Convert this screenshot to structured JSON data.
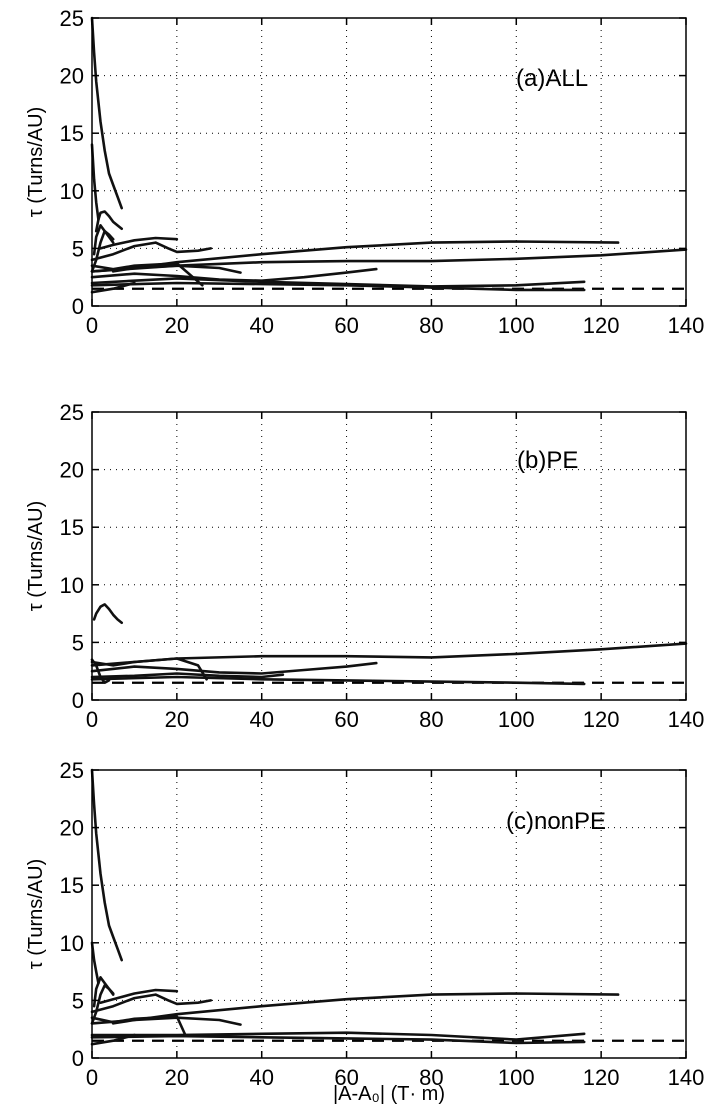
{
  "chart_data": [
    {
      "type": "line",
      "panel_label": "(a)ALL",
      "ylabel": "τ (Turns/AU)",
      "xlabel": "",
      "xlim": [
        0,
        140
      ],
      "ylim": [
        0,
        25
      ],
      "xticks": [
        0,
        20,
        40,
        60,
        80,
        100,
        120,
        140
      ],
      "yticks": [
        0,
        5,
        10,
        15,
        20,
        25
      ],
      "grid": "dotted",
      "reference_line": {
        "y": 1.5,
        "style": "dashed"
      },
      "series": [
        {
          "x": [
            0,
            0.5,
            1,
            2,
            3,
            4,
            5,
            6,
            7
          ],
          "y": [
            25,
            22,
            19.5,
            16,
            13.5,
            11.5,
            10.5,
            9.5,
            8.5
          ]
        },
        {
          "x": [
            0,
            0.5,
            1,
            1.5
          ],
          "y": [
            14,
            11,
            9,
            7.5
          ]
        },
        {
          "x": [
            1,
            1.5,
            2,
            3,
            4,
            5,
            6,
            7
          ],
          "y": [
            6.5,
            7.5,
            8.1,
            8.2,
            7.8,
            7.3,
            7.0,
            6.7
          ]
        },
        {
          "x": [
            0.5,
            1,
            2,
            3,
            4,
            5
          ],
          "y": [
            4.5,
            6,
            7,
            6.5,
            6,
            5.5
          ]
        },
        {
          "x": [
            0,
            1,
            2,
            3,
            4,
            5
          ],
          "y": [
            3,
            4,
            5.5,
            6.5,
            6.2,
            5.8
          ]
        },
        {
          "x": [
            2,
            5,
            10,
            15,
            20
          ],
          "y": [
            5,
            5.3,
            5.7,
            5.9,
            5.8
          ]
        },
        {
          "x": [
            0,
            5,
            10,
            15,
            18,
            20,
            25,
            28
          ],
          "y": [
            4,
            4.5,
            5.2,
            5.5,
            5.0,
            4.7,
            4.8,
            5.0
          ]
        },
        {
          "x": [
            0,
            10,
            20,
            40,
            60,
            80,
            100,
            124
          ],
          "y": [
            3.0,
            3.3,
            3.8,
            4.5,
            5.1,
            5.5,
            5.6,
            5.5
          ]
        },
        {
          "x": [
            0,
            20,
            40,
            60,
            80,
            100,
            120,
            140
          ],
          "y": [
            3.0,
            3.5,
            3.8,
            3.9,
            3.9,
            4.1,
            4.4,
            4.9
          ]
        },
        {
          "x": [
            0,
            10,
            20,
            30,
            40,
            50,
            60,
            67
          ],
          "y": [
            2.5,
            2.8,
            2.6,
            2.3,
            2.2,
            2.5,
            2.9,
            3.2
          ]
        },
        {
          "x": [
            0,
            20,
            40,
            60,
            80,
            100,
            116
          ],
          "y": [
            2.0,
            2.4,
            2.1,
            1.9,
            1.7,
            1.8,
            2.1
          ]
        },
        {
          "x": [
            0,
            20,
            40,
            60,
            80,
            100,
            116
          ],
          "y": [
            1.8,
            2.0,
            1.9,
            1.8,
            1.6,
            1.4,
            1.4
          ]
        },
        {
          "x": [
            5,
            10,
            20,
            30,
            35
          ],
          "y": [
            3.0,
            3.3,
            3.5,
            3.3,
            2.9
          ]
        },
        {
          "x": [
            0,
            5,
            10,
            20,
            26
          ],
          "y": [
            3.5,
            3.2,
            3.5,
            3.7,
            1.8
          ]
        },
        {
          "x": [
            0,
            5,
            10
          ],
          "y": [
            1.2,
            1.5,
            2.0
          ]
        }
      ]
    },
    {
      "type": "line",
      "panel_label": "(b)PE",
      "ylabel": "τ (Turns/AU)",
      "xlabel": "",
      "xlim": [
        0,
        140
      ],
      "ylim": [
        0,
        25
      ],
      "xticks": [
        0,
        20,
        40,
        60,
        80,
        100,
        120,
        140
      ],
      "yticks": [
        0,
        5,
        10,
        15,
        20,
        25
      ],
      "grid": "dotted",
      "reference_line": {
        "y": 1.5,
        "style": "dashed"
      },
      "series": [
        {
          "x": [
            0.5,
            1,
            2,
            3,
            4,
            5,
            6,
            7
          ],
          "y": [
            7.0,
            7.5,
            8.1,
            8.3,
            7.9,
            7.4,
            7.0,
            6.7
          ]
        },
        {
          "x": [
            0,
            20,
            40,
            60,
            80,
            100,
            120,
            140
          ],
          "y": [
            3.0,
            3.6,
            3.8,
            3.8,
            3.7,
            4.0,
            4.4,
            4.9
          ]
        },
        {
          "x": [
            0,
            10,
            20,
            30,
            40,
            50,
            60,
            67
          ],
          "y": [
            2.5,
            2.9,
            2.7,
            2.4,
            2.3,
            2.6,
            2.9,
            3.2
          ]
        },
        {
          "x": [
            0,
            20,
            40,
            60,
            80,
            100,
            116
          ],
          "y": [
            1.8,
            2.0,
            1.8,
            1.7,
            1.6,
            1.5,
            1.4
          ]
        },
        {
          "x": [
            0,
            5,
            10,
            20,
            25,
            27
          ],
          "y": [
            3.3,
            3.0,
            3.3,
            3.6,
            3.0,
            1.8
          ]
        },
        {
          "x": [
            0,
            10,
            20,
            30,
            40,
            45
          ],
          "y": [
            2.0,
            2.1,
            2.3,
            2.1,
            2.0,
            2.2
          ]
        },
        {
          "x": [
            0,
            1,
            2,
            3,
            4
          ],
          "y": [
            3.5,
            3.0,
            2.0,
            1.5,
            1.7
          ]
        }
      ]
    },
    {
      "type": "line",
      "panel_label": "(c)nonPE",
      "ylabel": "τ (Turns/AU)",
      "xlabel": "|A-A₀| (T· m)",
      "xlim": [
        0,
        140
      ],
      "ylim": [
        0,
        25
      ],
      "xticks": [
        0,
        20,
        40,
        60,
        80,
        100,
        120,
        140
      ],
      "yticks": [
        0,
        5,
        10,
        15,
        20,
        25
      ],
      "grid": "dotted",
      "reference_line": {
        "y": 1.5,
        "style": "dashed"
      },
      "series": [
        {
          "x": [
            0,
            0.5,
            1,
            2,
            3,
            4,
            5,
            6,
            7
          ],
          "y": [
            25,
            22,
            19.5,
            16,
            13.5,
            11.5,
            10.5,
            9.5,
            8.5
          ]
        },
        {
          "x": [
            0,
            0.5,
            1,
            1.5
          ],
          "y": [
            10,
            8.5,
            7.5,
            6.5
          ]
        },
        {
          "x": [
            0.5,
            1,
            2,
            3,
            4,
            5
          ],
          "y": [
            4.5,
            6,
            7,
            6.5,
            6,
            5.5
          ]
        },
        {
          "x": [
            0,
            1,
            2,
            3,
            4,
            5
          ],
          "y": [
            3,
            4,
            5.5,
            6.3,
            6.0,
            5.6
          ]
        },
        {
          "x": [
            2,
            5,
            10,
            15,
            20
          ],
          "y": [
            4.8,
            5.1,
            5.6,
            5.9,
            5.8
          ]
        },
        {
          "x": [
            0,
            5,
            10,
            15,
            18,
            20,
            25,
            28
          ],
          "y": [
            4,
            4.5,
            5.2,
            5.5,
            5.0,
            4.7,
            4.8,
            5.0
          ]
        },
        {
          "x": [
            0,
            10,
            20,
            40,
            60,
            80,
            100,
            124
          ],
          "y": [
            3.0,
            3.3,
            3.8,
            4.5,
            5.1,
            5.5,
            5.6,
            5.5
          ]
        },
        {
          "x": [
            0,
            20,
            40,
            60,
            80,
            100,
            116
          ],
          "y": [
            2.0,
            2.0,
            2.1,
            2.2,
            2.0,
            1.6,
            2.1
          ]
        },
        {
          "x": [
            0,
            20,
            40,
            60,
            80,
            100,
            116
          ],
          "y": [
            1.8,
            1.9,
            1.8,
            1.7,
            1.6,
            1.3,
            1.4
          ]
        },
        {
          "x": [
            5,
            10,
            20,
            30,
            35
          ],
          "y": [
            3.0,
            3.3,
            3.5,
            3.3,
            2.9
          ]
        },
        {
          "x": [
            0,
            5,
            10,
            20,
            22
          ],
          "y": [
            3.5,
            3.1,
            3.4,
            3.6,
            2.0
          ]
        },
        {
          "x": [
            0,
            5,
            10
          ],
          "y": [
            1.2,
            1.5,
            2.0
          ]
        }
      ]
    }
  ]
}
